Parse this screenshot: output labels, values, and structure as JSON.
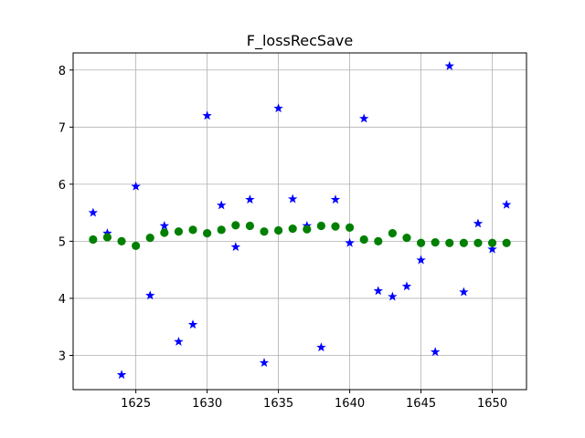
{
  "chart_data": {
    "type": "scatter",
    "title": "F_lossRecSave",
    "xlabel": "",
    "ylabel": "",
    "xlim": [
      1620.6,
      1652.4
    ],
    "ylim": [
      2.4,
      8.3
    ],
    "xticks": [
      1625,
      1630,
      1635,
      1640,
      1645,
      1650
    ],
    "yticks": [
      3,
      4,
      5,
      6,
      7,
      8
    ],
    "grid": true,
    "series": [
      {
        "marker": "star",
        "color": "#0000ff",
        "x": [
          1622,
          1623,
          1624,
          1625,
          1626,
          1627,
          1628,
          1629,
          1630,
          1631,
          1632,
          1633,
          1634,
          1635,
          1636,
          1637,
          1638,
          1639,
          1640,
          1641,
          1642,
          1643,
          1644,
          1645,
          1646,
          1647,
          1648,
          1649,
          1650,
          1651
        ],
        "y": [
          5.5,
          5.14,
          2.66,
          5.96,
          4.05,
          5.27,
          3.24,
          3.54,
          7.2,
          5.63,
          4.9,
          5.73,
          2.87,
          7.33,
          5.74,
          5.27,
          3.14,
          5.73,
          4.97,
          7.15,
          4.13,
          4.03,
          4.21,
          4.67,
          3.06,
          8.07,
          4.11,
          5.31,
          4.86,
          5.64
        ]
      },
      {
        "marker": "circle",
        "color": "#008000",
        "x": [
          1622,
          1623,
          1624,
          1625,
          1626,
          1627,
          1628,
          1629,
          1630,
          1631,
          1632,
          1633,
          1634,
          1635,
          1636,
          1637,
          1638,
          1639,
          1640,
          1641,
          1642,
          1643,
          1644,
          1645,
          1646,
          1647,
          1648,
          1649,
          1650,
          1651
        ],
        "y": [
          5.03,
          5.07,
          5.0,
          4.92,
          5.06,
          5.15,
          5.17,
          5.2,
          5.14,
          5.2,
          5.28,
          5.27,
          5.17,
          5.19,
          5.22,
          5.21,
          5.27,
          5.26,
          5.24,
          5.03,
          5.0,
          5.14,
          5.06,
          4.97,
          4.98,
          4.97,
          4.97,
          4.97,
          4.97,
          4.97
        ]
      }
    ]
  }
}
